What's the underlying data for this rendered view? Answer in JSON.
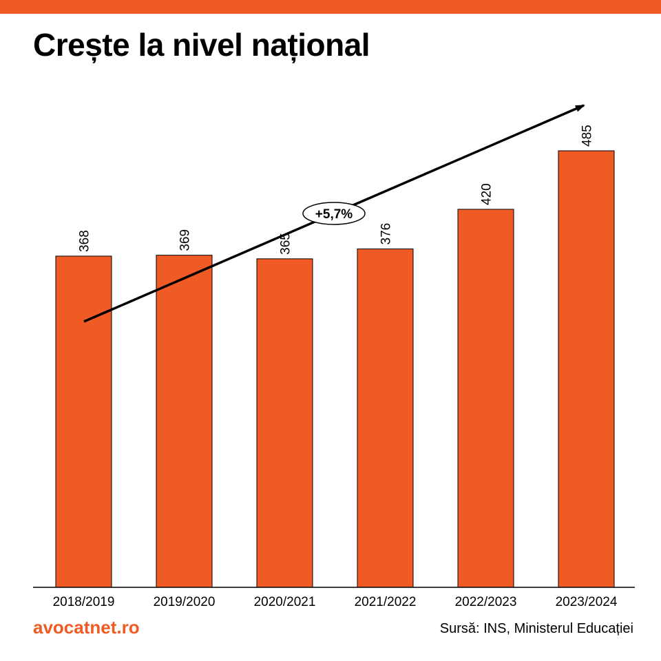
{
  "title": "Crește la nivel național",
  "brand": "avocatnet.ro",
  "source": "Sursă: INS, Ministerul Educației",
  "colors": {
    "accent": "#f05a24",
    "text": "#000000"
  },
  "chart_data": {
    "type": "bar",
    "categories": [
      "2018/2019",
      "2019/2020",
      "2020/2021",
      "2021/2022",
      "2022/2023",
      "2023/2024"
    ],
    "values": [
      368,
      369,
      365,
      376,
      420,
      485
    ],
    "ylim": [
      0,
      485
    ],
    "grid": false,
    "annotation": {
      "label": "+5,7%",
      "kind": "trend-arrow"
    }
  }
}
